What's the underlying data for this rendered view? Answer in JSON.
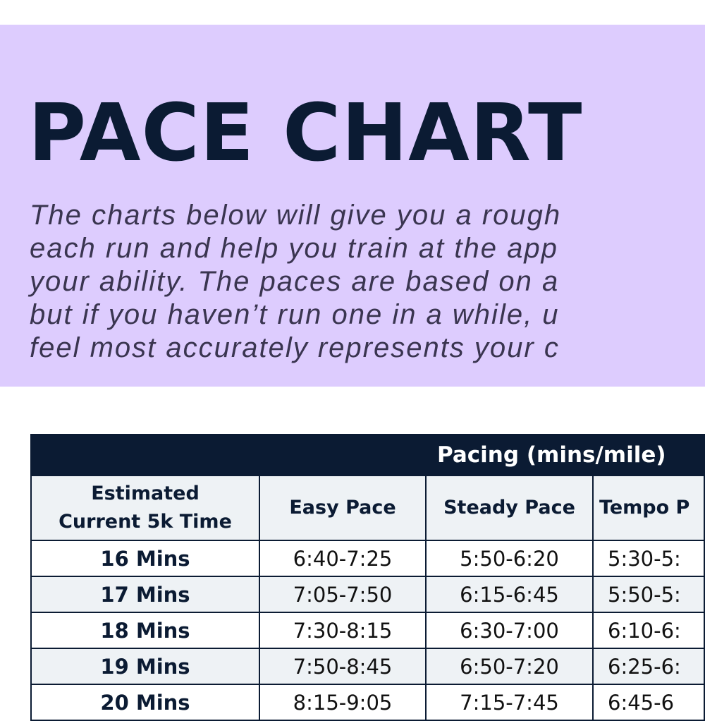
{
  "colors": {
    "band": "#ddccfe",
    "navy": "#0b1b33",
    "row_alt": "#eef2f5"
  },
  "title": "PACE CHART",
  "intro_lines": [
    "The charts below will give you a rough",
    "each run and help you train at the app",
    "your ability. The paces are based on a",
    "but if you haven’t run one in a while, u",
    "feel most accurately represents your c"
  ],
  "table": {
    "group_header": "Pacing (mins/mile)",
    "columns": [
      "Estimated Current 5k Time",
      "Easy Pace",
      "Steady Pace",
      "Tempo P"
    ],
    "rows": [
      [
        "16 Mins",
        "6:40-7:25",
        "5:50-6:20",
        "5:30-5:"
      ],
      [
        "17 Mins",
        "7:05-7:50",
        "6:15-6:45",
        "5:50-5:"
      ],
      [
        "18 Mins",
        "7:30-8:15",
        "6:30-7:00",
        "6:10-6:"
      ],
      [
        "19 Mins",
        "7:50-8:45",
        "6:50-7:20",
        "6:25-6:"
      ],
      [
        "20 Mins",
        "8:15-9:05",
        "7:15-7:45",
        "6:45-6"
      ]
    ]
  }
}
